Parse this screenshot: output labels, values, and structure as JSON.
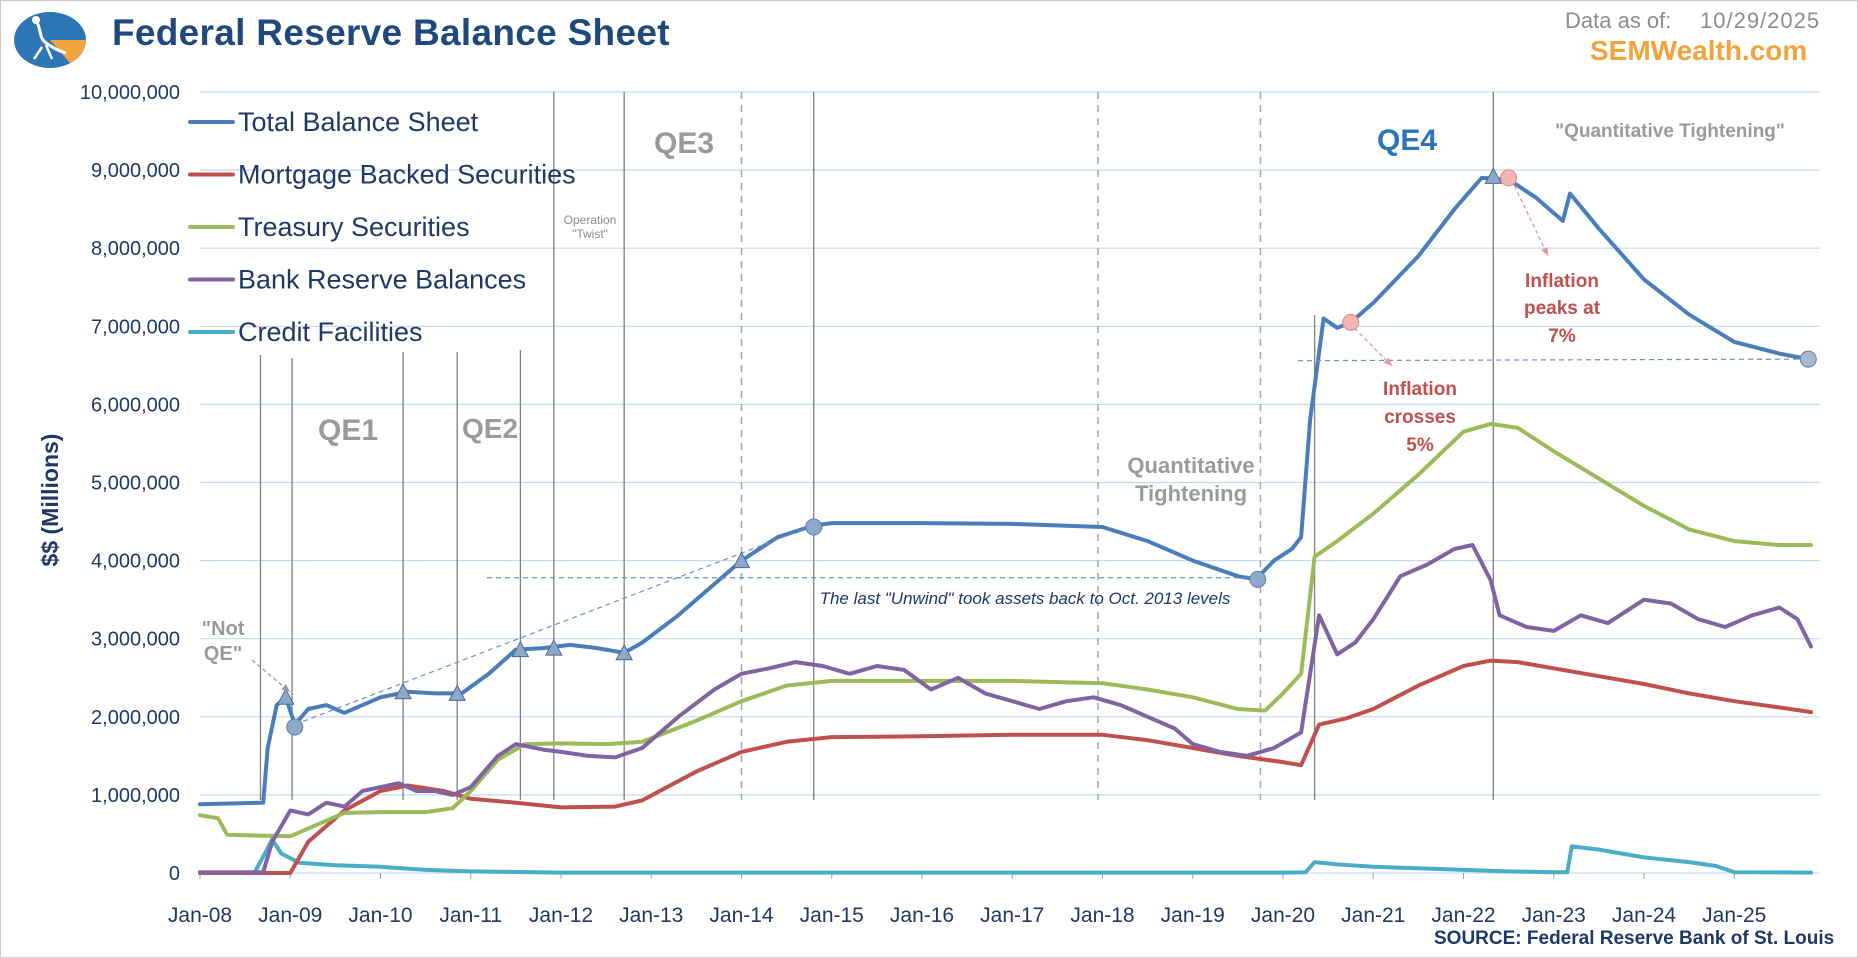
{
  "header": {
    "title": "Federal Reserve Balance Sheet",
    "as_of_label": "Data as of:",
    "as_of_date": "10/29/2025",
    "site": "SEMWealth.com",
    "source": "SOURCE:  Federal Reserve Bank of St. Louis"
  },
  "chart_data": {
    "type": "line",
    "title": "Federal Reserve Balance Sheet",
    "ylabel": "$$ (Millions)",
    "xlabel": "",
    "ylim": [
      0,
      10000000
    ],
    "xlim": [
      2008.0,
      2025.95
    ],
    "y_ticks": [
      "0",
      "1,000,000",
      "2,000,000",
      "3,000,000",
      "4,000,000",
      "5,000,000",
      "6,000,000",
      "7,000,000",
      "8,000,000",
      "9,000,000",
      "10,000,000"
    ],
    "x_ticks": [
      "Jan-08",
      "Jan-09",
      "Jan-10",
      "Jan-11",
      "Jan-12",
      "Jan-13",
      "Jan-14",
      "Jan-15",
      "Jan-16",
      "Jan-17",
      "Jan-18",
      "Jan-19",
      "Jan-20",
      "Jan-21",
      "Jan-22",
      "Jan-23",
      "Jan-24",
      "Jan-25"
    ],
    "grid": true,
    "legend_position": "top-left",
    "series": [
      {
        "name": "Total Balance Sheet",
        "color": "#4a7ebb",
        "points": [
          [
            2008.0,
            880000
          ],
          [
            2008.7,
            900000
          ],
          [
            2008.75,
            1600000
          ],
          [
            2008.85,
            2150000
          ],
          [
            2008.95,
            2250000
          ],
          [
            2009.05,
            1900000
          ],
          [
            2009.2,
            2100000
          ],
          [
            2009.4,
            2150000
          ],
          [
            2009.6,
            2050000
          ],
          [
            2009.8,
            2150000
          ],
          [
            2010.0,
            2250000
          ],
          [
            2010.3,
            2320000
          ],
          [
            2010.6,
            2300000
          ],
          [
            2010.9,
            2300000
          ],
          [
            2011.2,
            2550000
          ],
          [
            2011.5,
            2860000
          ],
          [
            2011.8,
            2880000
          ],
          [
            2012.1,
            2920000
          ],
          [
            2012.4,
            2880000
          ],
          [
            2012.7,
            2820000
          ],
          [
            2012.9,
            2950000
          ],
          [
            2013.3,
            3300000
          ],
          [
            2013.7,
            3700000
          ],
          [
            2014.0,
            4000000
          ],
          [
            2014.4,
            4300000
          ],
          [
            2014.8,
            4450000
          ],
          [
            2015.0,
            4480000
          ],
          [
            2016.0,
            4480000
          ],
          [
            2017.0,
            4470000
          ],
          [
            2018.0,
            4430000
          ],
          [
            2018.5,
            4250000
          ],
          [
            2019.0,
            4000000
          ],
          [
            2019.5,
            3800000
          ],
          [
            2019.7,
            3760000
          ],
          [
            2019.9,
            4000000
          ],
          [
            2020.1,
            4150000
          ],
          [
            2020.2,
            4300000
          ],
          [
            2020.3,
            5800000
          ],
          [
            2020.45,
            7100000
          ],
          [
            2020.6,
            6980000
          ],
          [
            2020.75,
            7050000
          ],
          [
            2021.0,
            7300000
          ],
          [
            2021.5,
            7900000
          ],
          [
            2021.9,
            8500000
          ],
          [
            2022.2,
            8900000
          ],
          [
            2022.5,
            8880000
          ],
          [
            2022.8,
            8650000
          ],
          [
            2023.0,
            8450000
          ],
          [
            2023.1,
            8350000
          ],
          [
            2023.18,
            8700000
          ],
          [
            2023.5,
            8250000
          ],
          [
            2024.0,
            7600000
          ],
          [
            2024.5,
            7150000
          ],
          [
            2025.0,
            6800000
          ],
          [
            2025.5,
            6650000
          ],
          [
            2025.82,
            6580000
          ]
        ]
      },
      {
        "name": "Mortgage Backed Securities",
        "color": "#c0504d",
        "points": [
          [
            2008.0,
            0
          ],
          [
            2009.0,
            0
          ],
          [
            2009.2,
            400000
          ],
          [
            2009.6,
            800000
          ],
          [
            2010.0,
            1050000
          ],
          [
            2010.3,
            1120000
          ],
          [
            2010.7,
            1050000
          ],
          [
            2011.0,
            950000
          ],
          [
            2011.5,
            900000
          ],
          [
            2012.0,
            840000
          ],
          [
            2012.6,
            850000
          ],
          [
            2012.9,
            930000
          ],
          [
            2013.5,
            1300000
          ],
          [
            2014.0,
            1550000
          ],
          [
            2014.5,
            1680000
          ],
          [
            2015.0,
            1740000
          ],
          [
            2016.0,
            1750000
          ],
          [
            2017.0,
            1770000
          ],
          [
            2018.0,
            1770000
          ],
          [
            2018.5,
            1700000
          ],
          [
            2019.0,
            1600000
          ],
          [
            2019.5,
            1500000
          ],
          [
            2020.0,
            1420000
          ],
          [
            2020.2,
            1380000
          ],
          [
            2020.4,
            1900000
          ],
          [
            2020.7,
            1980000
          ],
          [
            2021.0,
            2100000
          ],
          [
            2021.5,
            2400000
          ],
          [
            2022.0,
            2650000
          ],
          [
            2022.3,
            2720000
          ],
          [
            2022.6,
            2700000
          ],
          [
            2023.0,
            2620000
          ],
          [
            2023.5,
            2520000
          ],
          [
            2024.0,
            2420000
          ],
          [
            2024.5,
            2300000
          ],
          [
            2025.0,
            2200000
          ],
          [
            2025.5,
            2120000
          ],
          [
            2025.85,
            2060000
          ]
        ]
      },
      {
        "name": "Treasury Securities",
        "color": "#9bbb59",
        "points": [
          [
            2008.0,
            740000
          ],
          [
            2008.2,
            700000
          ],
          [
            2008.3,
            490000
          ],
          [
            2008.6,
            480000
          ],
          [
            2009.0,
            470000
          ],
          [
            2009.3,
            620000
          ],
          [
            2009.6,
            770000
          ],
          [
            2010.0,
            780000
          ],
          [
            2010.5,
            780000
          ],
          [
            2010.8,
            830000
          ],
          [
            2011.0,
            1050000
          ],
          [
            2011.3,
            1450000
          ],
          [
            2011.6,
            1650000
          ],
          [
            2012.0,
            1660000
          ],
          [
            2012.5,
            1650000
          ],
          [
            2012.9,
            1680000
          ],
          [
            2013.5,
            1950000
          ],
          [
            2014.0,
            2200000
          ],
          [
            2014.5,
            2400000
          ],
          [
            2015.0,
            2460000
          ],
          [
            2016.0,
            2460000
          ],
          [
            2017.0,
            2460000
          ],
          [
            2018.0,
            2430000
          ],
          [
            2018.5,
            2350000
          ],
          [
            2019.0,
            2250000
          ],
          [
            2019.5,
            2100000
          ],
          [
            2019.8,
            2080000
          ],
          [
            2020.0,
            2300000
          ],
          [
            2020.2,
            2550000
          ],
          [
            2020.35,
            4050000
          ],
          [
            2020.6,
            4250000
          ],
          [
            2021.0,
            4600000
          ],
          [
            2021.5,
            5100000
          ],
          [
            2022.0,
            5650000
          ],
          [
            2022.3,
            5750000
          ],
          [
            2022.6,
            5700000
          ],
          [
            2023.0,
            5400000
          ],
          [
            2023.5,
            5050000
          ],
          [
            2024.0,
            4700000
          ],
          [
            2024.5,
            4400000
          ],
          [
            2025.0,
            4250000
          ],
          [
            2025.5,
            4200000
          ],
          [
            2025.85,
            4200000
          ]
        ]
      },
      {
        "name": "Bank Reserve Balances",
        "color": "#8064a2",
        "points": [
          [
            2008.0,
            10000
          ],
          [
            2008.7,
            10000
          ],
          [
            2008.8,
            400000
          ],
          [
            2009.0,
            800000
          ],
          [
            2009.2,
            750000
          ],
          [
            2009.4,
            900000
          ],
          [
            2009.6,
            850000
          ],
          [
            2009.8,
            1050000
          ],
          [
            2010.0,
            1100000
          ],
          [
            2010.2,
            1150000
          ],
          [
            2010.4,
            1050000
          ],
          [
            2010.6,
            1050000
          ],
          [
            2010.8,
            1000000
          ],
          [
            2011.0,
            1100000
          ],
          [
            2011.3,
            1500000
          ],
          [
            2011.5,
            1650000
          ],
          [
            2011.8,
            1580000
          ],
          [
            2012.0,
            1550000
          ],
          [
            2012.3,
            1500000
          ],
          [
            2012.6,
            1480000
          ],
          [
            2012.9,
            1600000
          ],
          [
            2013.3,
            2000000
          ],
          [
            2013.7,
            2350000
          ],
          [
            2014.0,
            2550000
          ],
          [
            2014.3,
            2620000
          ],
          [
            2014.6,
            2700000
          ],
          [
            2014.9,
            2650000
          ],
          [
            2015.2,
            2550000
          ],
          [
            2015.5,
            2650000
          ],
          [
            2015.8,
            2600000
          ],
          [
            2016.1,
            2350000
          ],
          [
            2016.4,
            2500000
          ],
          [
            2016.7,
            2300000
          ],
          [
            2017.0,
            2200000
          ],
          [
            2017.3,
            2100000
          ],
          [
            2017.6,
            2200000
          ],
          [
            2017.9,
            2250000
          ],
          [
            2018.2,
            2150000
          ],
          [
            2018.5,
            2000000
          ],
          [
            2018.8,
            1850000
          ],
          [
            2019.0,
            1650000
          ],
          [
            2019.3,
            1550000
          ],
          [
            2019.6,
            1500000
          ],
          [
            2019.9,
            1600000
          ],
          [
            2020.2,
            1800000
          ],
          [
            2020.4,
            3300000
          ],
          [
            2020.6,
            2800000
          ],
          [
            2020.8,
            2950000
          ],
          [
            2021.0,
            3250000
          ],
          [
            2021.3,
            3800000
          ],
          [
            2021.6,
            3950000
          ],
          [
            2021.9,
            4150000
          ],
          [
            2022.1,
            4200000
          ],
          [
            2022.3,
            3750000
          ],
          [
            2022.4,
            3300000
          ],
          [
            2022.7,
            3150000
          ],
          [
            2023.0,
            3100000
          ],
          [
            2023.3,
            3300000
          ],
          [
            2023.6,
            3200000
          ],
          [
            2024.0,
            3500000
          ],
          [
            2024.3,
            3450000
          ],
          [
            2024.6,
            3250000
          ],
          [
            2024.9,
            3150000
          ],
          [
            2025.2,
            3300000
          ],
          [
            2025.5,
            3400000
          ],
          [
            2025.7,
            3250000
          ],
          [
            2025.85,
            2900000
          ]
        ]
      },
      {
        "name": "Credit Facilities",
        "color": "#4bacc6",
        "points": [
          [
            2008.0,
            0
          ],
          [
            2008.6,
            0
          ],
          [
            2008.72,
            250000
          ],
          [
            2008.8,
            430000
          ],
          [
            2008.9,
            250000
          ],
          [
            2009.1,
            130000
          ],
          [
            2009.5,
            100000
          ],
          [
            2010.0,
            80000
          ],
          [
            2010.5,
            40000
          ],
          [
            2011.0,
            20000
          ],
          [
            2012.0,
            5000
          ],
          [
            2013.0,
            5000
          ],
          [
            2014.0,
            5000
          ],
          [
            2015.0,
            5000
          ],
          [
            2016.0,
            5000
          ],
          [
            2017.0,
            5000
          ],
          [
            2018.0,
            5000
          ],
          [
            2019.0,
            5000
          ],
          [
            2020.0,
            5000
          ],
          [
            2020.25,
            10000
          ],
          [
            2020.35,
            140000
          ],
          [
            2020.6,
            110000
          ],
          [
            2021.0,
            80000
          ],
          [
            2021.5,
            60000
          ],
          [
            2022.0,
            40000
          ],
          [
            2022.5,
            20000
          ],
          [
            2023.0,
            10000
          ],
          [
            2023.15,
            10000
          ],
          [
            2023.2,
            340000
          ],
          [
            2023.5,
            300000
          ],
          [
            2024.0,
            200000
          ],
          [
            2024.5,
            140000
          ],
          [
            2024.8,
            90000
          ],
          [
            2025.0,
            10000
          ],
          [
            2025.85,
            5000
          ]
        ]
      }
    ],
    "annotations": {
      "qe1": "QE1",
      "qe2": "QE2",
      "qe3": "QE3",
      "qe4": "QE4",
      "not_qe_1": "\"Not",
      "not_qe_2": "QE\"",
      "operation_1": "Operation",
      "operation_2": "\"Twist\"",
      "qt_1": "Quantitative",
      "qt_2": "Tightening",
      "qt_quoted": "\"Quantitative Tightening\"",
      "unwind": "The last \"Unwind\" took assets back to Oct. 2013 levels",
      "infl5_1": "Inflation",
      "infl5_2": "crosses",
      "infl5_3": "5%",
      "infl7_1": "Inflation",
      "infl7_2": "peaks at",
      "infl7_3": "7%"
    }
  }
}
